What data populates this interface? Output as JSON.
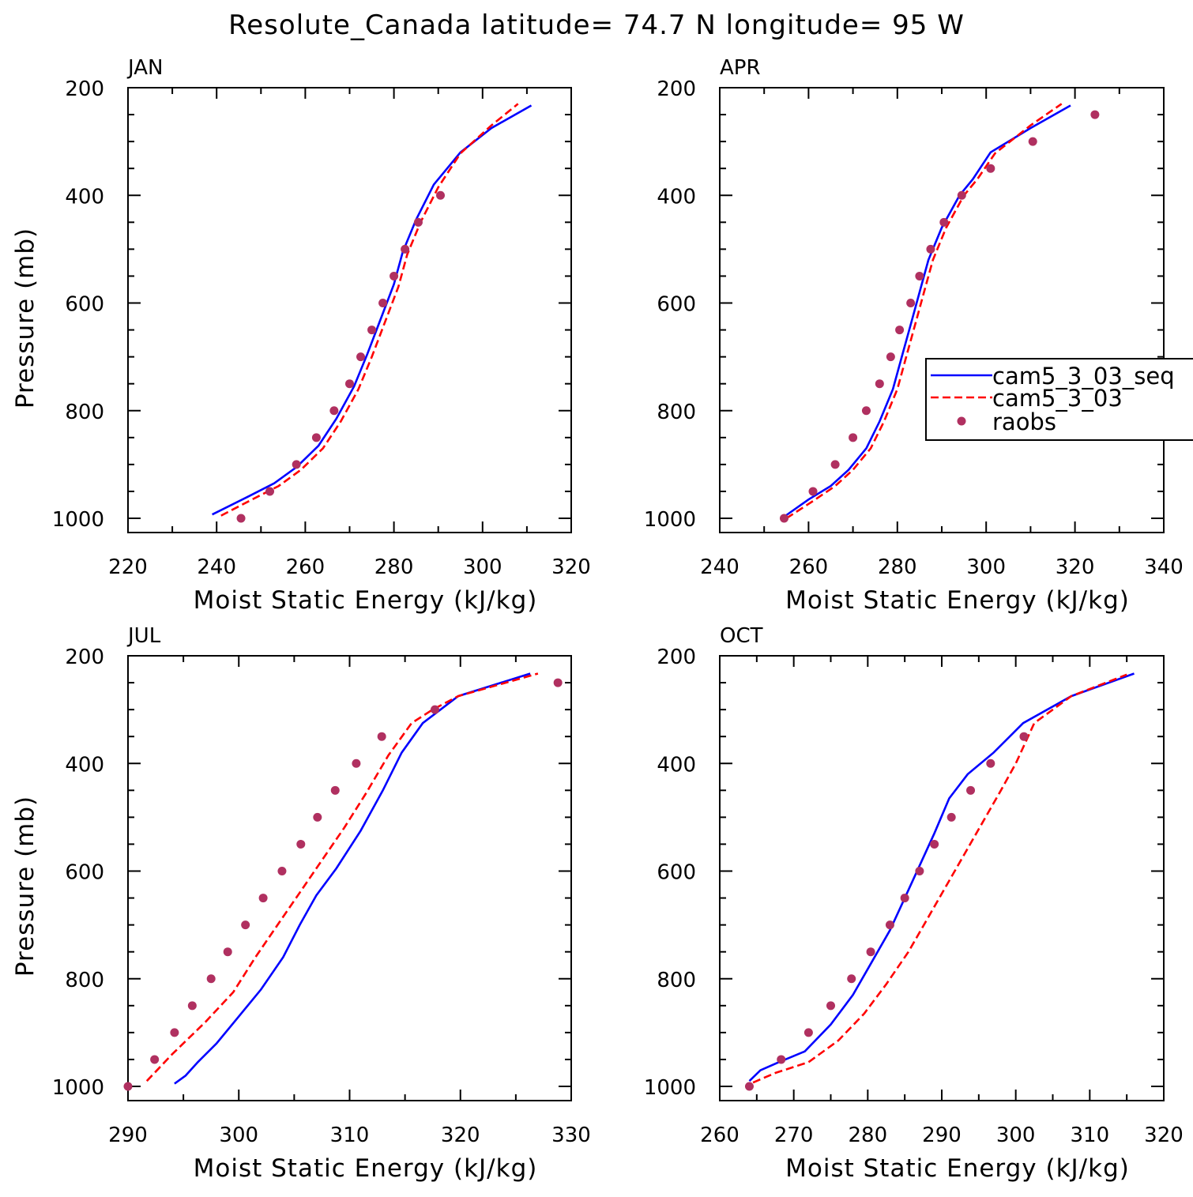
{
  "title": "Resolute_Canada  latitude= 74.7 N longitude= 95 W",
  "colors": {
    "seq": "#0000ff",
    "cam": "#ff0000",
    "raobs": "#b03060"
  },
  "legend": {
    "items": [
      "cam5_3_03_seq",
      "cam5_3_03",
      "raobs"
    ]
  },
  "chart_data": [
    {
      "type": "line",
      "panel": "JAN",
      "xlabel": "Moist Static Energy (kJ/kg)",
      "ylabel": "Pressure (mb)",
      "xlim": [
        220,
        320
      ],
      "ylim": [
        1000,
        200
      ],
      "xticks": [
        220,
        240,
        260,
        280,
        300,
        320
      ],
      "yticks": [
        200,
        400,
        600,
        800,
        1000
      ],
      "series": [
        {
          "name": "cam5_3_03_seq",
          "style": "solid",
          "x": [
            239,
            247,
            253,
            258,
            263,
            267,
            271,
            274,
            277,
            280,
            282,
            285,
            289,
            295,
            302,
            311
          ],
          "y": [
            993,
            960,
            935,
            905,
            865,
            815,
            755,
            695,
            630,
            565,
            505,
            445,
            380,
            320,
            275,
            233
          ]
        },
        {
          "name": "cam5_3_03",
          "style": "dashed",
          "x": [
            241,
            248,
            254,
            259,
            264,
            268,
            272,
            275,
            278,
            281,
            283,
            286,
            290,
            295,
            302,
            308
          ],
          "y": [
            995,
            965,
            940,
            910,
            870,
            820,
            760,
            700,
            635,
            570,
            510,
            450,
            385,
            322,
            270,
            230
          ]
        },
        {
          "name": "raobs",
          "style": "markers",
          "x": [
            245.5,
            252,
            258,
            262.5,
            266.5,
            270,
            272.5,
            275,
            277.5,
            280,
            282.5,
            285.5,
            290.5
          ],
          "y": [
            1000,
            950,
            900,
            850,
            800,
            750,
            700,
            650,
            600,
            550,
            500,
            450,
            400
          ]
        }
      ]
    },
    {
      "type": "line",
      "panel": "APR",
      "xlabel": "Moist Static Energy (kJ/kg)",
      "ylabel": "",
      "xlim": [
        240,
        340
      ],
      "ylim": [
        1000,
        200
      ],
      "xticks": [
        240,
        260,
        280,
        300,
        320,
        340
      ],
      "yticks": [
        200,
        400,
        600,
        800,
        1000
      ],
      "series": [
        {
          "name": "cam5_3_03_seq",
          "style": "solid",
          "x": [
            254,
            260,
            265,
            269,
            273,
            276,
            279,
            281,
            283,
            285,
            287,
            290,
            294,
            297,
            301,
            310,
            319
          ],
          "y": [
            1000,
            965,
            940,
            910,
            870,
            820,
            760,
            700,
            640,
            580,
            520,
            460,
            400,
            370,
            320,
            275,
            233
          ]
        },
        {
          "name": "cam5_3_03",
          "style": "dashed",
          "x": [
            255,
            261,
            266,
            270,
            274,
            277,
            280,
            282,
            284,
            286,
            288,
            291,
            295,
            298,
            302,
            310,
            317
          ],
          "y": [
            1000,
            968,
            940,
            910,
            870,
            820,
            760,
            700,
            640,
            580,
            520,
            460,
            400,
            370,
            322,
            270,
            230
          ]
        },
        {
          "name": "raobs",
          "style": "markers",
          "x": [
            254.5,
            261,
            266,
            270,
            273,
            276,
            278.5,
            280.5,
            283,
            285,
            287.5,
            290.5,
            294.5,
            301,
            310.5,
            324.5
          ],
          "y": [
            1000,
            950,
            900,
            850,
            800,
            750,
            700,
            650,
            600,
            550,
            500,
            450,
            400,
            350,
            300,
            250
          ]
        }
      ]
    },
    {
      "type": "line",
      "panel": "JUL",
      "xlabel": "Moist Static Energy (kJ/kg)",
      "ylabel": "Pressure (mb)",
      "xlim": [
        290,
        330
      ],
      "ylim": [
        1000,
        200
      ],
      "xticks": [
        290,
        300,
        310,
        320,
        330
      ],
      "yticks": [
        200,
        400,
        600,
        800,
        1000
      ],
      "series": [
        {
          "name": "cam5_3_03_seq",
          "style": "solid",
          "x": [
            294.2,
            295.2,
            296.3,
            298,
            300,
            302,
            304,
            305.5,
            307,
            308.8,
            311,
            313,
            314.7,
            316.6,
            319.8,
            326.3
          ],
          "y": [
            995,
            980,
            955,
            920,
            870,
            820,
            760,
            700,
            645,
            595,
            525,
            450,
            380,
            325,
            275,
            233
          ]
        },
        {
          "name": "cam5_3_03",
          "style": "dashed",
          "x": [
            291.7,
            294,
            297,
            299.5,
            301.5,
            303.5,
            305.5,
            307.5,
            309.5,
            311.5,
            313.5,
            315.6,
            317.5,
            319.8,
            327
          ],
          "y": [
            990,
            940,
            880,
            825,
            760,
            700,
            640,
            580,
            520,
            455,
            385,
            325,
            300,
            275,
            233
          ]
        },
        {
          "name": "raobs",
          "style": "markers",
          "x": [
            290,
            292.4,
            294.2,
            295.8,
            297.5,
            299,
            300.6,
            302.2,
            303.9,
            305.6,
            307.1,
            308.7,
            310.6,
            312.9,
            317.7,
            328.8
          ],
          "y": [
            1000,
            950,
            900,
            850,
            800,
            750,
            700,
            650,
            600,
            550,
            500,
            450,
            400,
            350,
            300,
            250
          ]
        }
      ]
    },
    {
      "type": "line",
      "panel": "OCT",
      "xlabel": "Moist Static Energy (kJ/kg)",
      "ylabel": "",
      "xlim": [
        260,
        320
      ],
      "ylim": [
        1000,
        200
      ],
      "xticks": [
        260,
        270,
        280,
        290,
        300,
        310,
        320
      ],
      "yticks": [
        200,
        400,
        600,
        800,
        1000
      ],
      "series": [
        {
          "name": "cam5_3_03_seq",
          "style": "solid",
          "x": [
            264,
            265.5,
            268,
            271.5,
            275,
            278,
            280.5,
            283,
            285,
            287,
            289,
            291,
            293.5,
            297,
            301,
            307.5,
            316
          ],
          "y": [
            990,
            970,
            955,
            935,
            885,
            830,
            770,
            710,
            650,
            590,
            530,
            465,
            420,
            380,
            325,
            275,
            233
          ]
        },
        {
          "name": "cam5_3_03",
          "style": "dashed",
          "x": [
            264.5,
            267.5,
            272,
            276,
            279.5,
            282.5,
            285.5,
            288,
            290.5,
            293,
            295.5,
            298,
            300,
            302.5,
            307.5,
            315
          ],
          "y": [
            993,
            975,
            955,
            915,
            865,
            810,
            750,
            690,
            630,
            570,
            510,
            450,
            400,
            325,
            275,
            235
          ]
        },
        {
          "name": "raobs",
          "style": "markers",
          "x": [
            264,
            268.3,
            272,
            275,
            277.8,
            280.4,
            283,
            285,
            287,
            289,
            291.3,
            293.9,
            296.6,
            301.1
          ],
          "y": [
            1000,
            950,
            900,
            850,
            800,
            750,
            700,
            650,
            600,
            550,
            500,
            450,
            400,
            350
          ]
        }
      ]
    }
  ]
}
